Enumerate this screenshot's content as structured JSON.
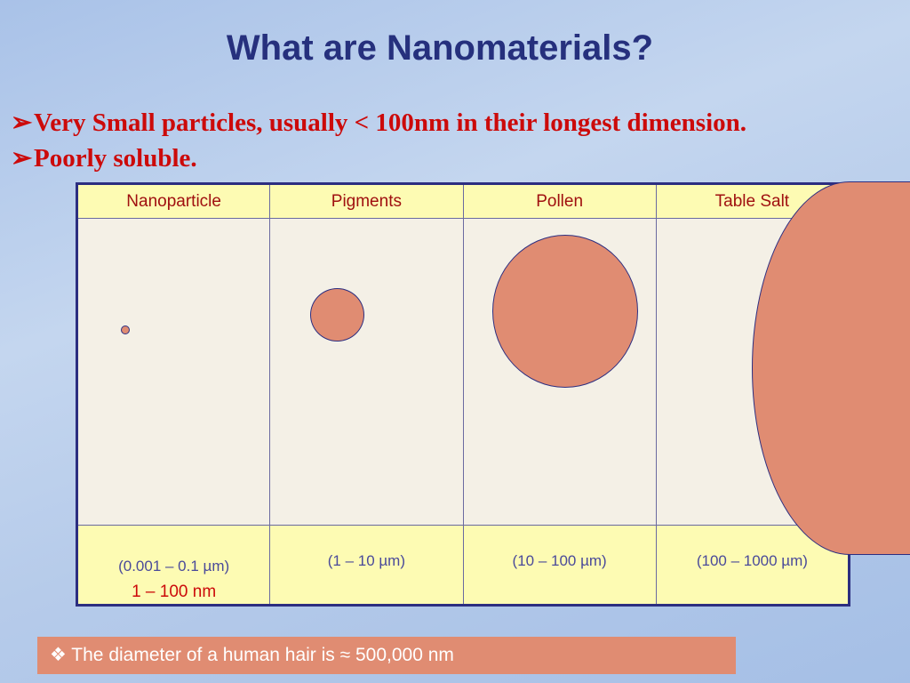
{
  "title": "What are Nanomaterials?",
  "bullets": [
    {
      "marker": "➢",
      "text": "Very Small particles, usually < 100nm in their longest dimension."
    },
    {
      "marker": "➢",
      "text": "Poorly soluble."
    }
  ],
  "table": {
    "headers": [
      "Nanoparticle",
      "Pigments",
      "Pollen",
      "Table Salt"
    ],
    "ranges": [
      "(0.001 – 0.1 µm)",
      "(1 – 10 µm)",
      "(10 – 100 µm)",
      "(100 – 1000 µm)"
    ],
    "nm_label": "1 – 100 nm"
  },
  "note": {
    "marker": "❖",
    "text": "The diameter of a human hair is ≈ 500,000 nm"
  },
  "colors": {
    "title": "#26307d",
    "bullet_text": "#cc0a0a",
    "particle_fill": "#e08c72",
    "table_header_bg": "#fdfbb3",
    "table_body_bg": "#f4f0e6"
  }
}
